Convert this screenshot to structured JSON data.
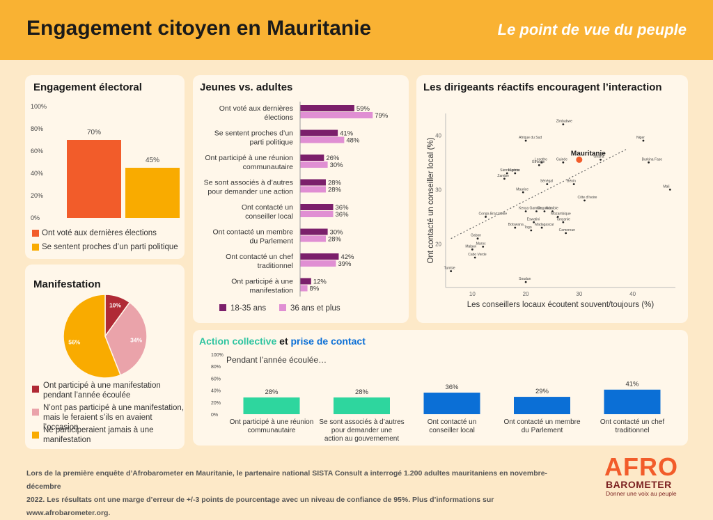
{
  "header": {
    "title": "Engagement citoyen en Mauritanie",
    "subtitle": "Le point de vue du peuple"
  },
  "colors": {
    "orange_red": "#f25c2a",
    "amber": "#f9ab00",
    "purple_dark": "#7b1f6b",
    "purple_light": "#e08fd3",
    "teal": "#2ed69e",
    "blue": "#0b6fd6",
    "dark_red": "#b02a35",
    "pink": "#eaa3aa",
    "header_bg": "#f9b233"
  },
  "electoral": {
    "title": "Engagement électoral",
    "chart_data": {
      "type": "bar",
      "title": "Engagement électoral",
      "categories": [
        "Ont voté aux dernières élections",
        "Se sentent proches d’un parti politique"
      ],
      "values": [
        70,
        45
      ],
      "value_labels": [
        "70%",
        "45%"
      ],
      "ylim": [
        0,
        100
      ],
      "ticks": [
        "0%",
        "20%",
        "40%",
        "60%",
        "80%",
        "100%"
      ],
      "legend": [
        "Ont voté aux dernières élections",
        "Se sentent proches d’un parti politique"
      ]
    }
  },
  "youth": {
    "title": "Jeunes vs. adultes",
    "chart_data": {
      "type": "bar",
      "orientation": "horizontal",
      "categories": [
        [
          "Ont voté aux dernières",
          "élections"
        ],
        [
          "Se sentent proches d’un",
          "parti politique"
        ],
        [
          "Ont participé à une réunion",
          "communautaire"
        ],
        [
          "Se sont associés à d’autres",
          "pour demander une action"
        ],
        [
          "Ont contacté un",
          "conseiller local"
        ],
        [
          "Ont contacté un membre",
          "du Parlement"
        ],
        [
          "Ont contacté un chef",
          "traditionnel"
        ],
        [
          "Ont participé à une",
          "manifestation"
        ]
      ],
      "series": [
        {
          "name": "18-35 ans",
          "values": [
            59,
            41,
            26,
            28,
            36,
            30,
            42,
            12
          ]
        },
        {
          "name": "36 ans et plus",
          "values": [
            79,
            48,
            30,
            28,
            36,
            28,
            39,
            8
          ]
        }
      ],
      "xlim": [
        0,
        100
      ]
    }
  },
  "scatter": {
    "title": "Les dirigeants réactifs encouragent l’interaction",
    "chart_data": {
      "type": "scatter",
      "xlabel": "Les conseillers locaux écoutent souvent/toujours (%)",
      "ylabel": "Ont contacté un conseiller local (%)",
      "xlim": [
        5,
        48
      ],
      "ylim": [
        12,
        44
      ],
      "xticks": [
        10,
        20,
        30,
        40
      ],
      "yticks": [
        20,
        30,
        40
      ],
      "points": [
        {
          "label": "Zimbabwe",
          "x": 27,
          "y": 42
        },
        {
          "label": "Afrique du Sud",
          "x": 20,
          "y": 39
        },
        {
          "label": "Niger",
          "x": 42,
          "y": 39
        },
        {
          "label": "Guinée",
          "x": 27,
          "y": 35
        },
        {
          "label": "Mauritanie",
          "x": 30,
          "y": 35.5,
          "highlight": true
        },
        {
          "label": "Ghana",
          "x": 34,
          "y": 35.5
        },
        {
          "label": "Burkina Faso",
          "x": 43,
          "y": 35
        },
        {
          "label": "Lesotho",
          "x": 23,
          "y": 35
        },
        {
          "label": "Éthiopie",
          "x": 22.5,
          "y": 34.5
        },
        {
          "label": "Sierra Leone",
          "x": 16.5,
          "y": 33
        },
        {
          "label": "Nigéria",
          "x": 18,
          "y": 33
        },
        {
          "label": "Zambie",
          "x": 16,
          "y": 32
        },
        {
          "label": "Sénégal",
          "x": 24,
          "y": 31
        },
        {
          "label": "Bénin",
          "x": 29,
          "y": 31
        },
        {
          "label": "Mali",
          "x": 47,
          "y": 30
        },
        {
          "label": "Maurice",
          "x": 19.5,
          "y": 29.5
        },
        {
          "label": "Côte d'Ivoire",
          "x": 31,
          "y": 28
        },
        {
          "label": "Kenya",
          "x": 20,
          "y": 26
        },
        {
          "label": "Gambie",
          "x": 22,
          "y": 26
        },
        {
          "label": "Namibie",
          "x": 25,
          "y": 26
        },
        {
          "label": "Ouganda",
          "x": 23.5,
          "y": 26
        },
        {
          "label": "Congo-Brazzaville",
          "x": 12.5,
          "y": 25
        },
        {
          "label": "Mozambique",
          "x": 26,
          "y": 25
        },
        {
          "label": "Eswatini",
          "x": 21.5,
          "y": 24
        },
        {
          "label": "Tanzanie",
          "x": 27,
          "y": 24
        },
        {
          "label": "Madagascar",
          "x": 23,
          "y": 23
        },
        {
          "label": "Botswana",
          "x": 18,
          "y": 23
        },
        {
          "label": "Togo",
          "x": 21,
          "y": 22.5
        },
        {
          "label": "Cameroun",
          "x": 27.5,
          "y": 22
        },
        {
          "label": "Gabon",
          "x": 11,
          "y": 21
        },
        {
          "label": "Maroc",
          "x": 12,
          "y": 19.5
        },
        {
          "label": "Malawi",
          "x": 10,
          "y": 19
        },
        {
          "label": "Cabo Verde",
          "x": 10.5,
          "y": 17.5
        },
        {
          "label": "Tunisie",
          "x": 6,
          "y": 15
        },
        {
          "label": "Soudan",
          "x": 20,
          "y": 13
        }
      ]
    }
  },
  "manif": {
    "title": "Manifestation",
    "chart_data": {
      "type": "pie",
      "slices": [
        {
          "label": "Ont participé à une manifestation pendant l’année écoulée",
          "value": 10
        },
        {
          "label": "N’ont pas participé à une manifestation, mais le feraient s’ils en avaient l’occasion",
          "value": 34
        },
        {
          "label": "Ne participeraient jamais à une manifestation",
          "value": 56
        }
      ],
      "value_labels": [
        "10%",
        "34%",
        "56%"
      ]
    },
    "legend": [
      [
        "Ont participé à une manifestation",
        "pendant l’année écoulée"
      ],
      [
        "N’ont pas participé à une manifestation,",
        "mais le feraient s’ils en avaient l’occasion"
      ],
      [
        "Ne participeraient jamais à une",
        "manifestation"
      ]
    ]
  },
  "action": {
    "title_part1": "Action collective",
    "title_and": "et",
    "title_part2": "prise de contact",
    "subtitle": "Pendant l’année écoulée…",
    "chart_data": {
      "type": "bar",
      "categories": [
        [
          "Ont participé à une réunion",
          "communautaire"
        ],
        [
          "Se sont associés à d’autres",
          "pour demander une",
          "action au gouvernement"
        ],
        [
          "Ont contacté un",
          "conseiller local"
        ],
        [
          "Ont contacté un membre",
          "du Parlement"
        ],
        [
          "Ont contacté un chef",
          "traditionnel"
        ]
      ],
      "values": [
        28,
        28,
        36,
        29,
        41
      ],
      "value_labels": [
        "28%",
        "28%",
        "36%",
        "29%",
        "41%"
      ],
      "ylim": [
        0,
        100
      ],
      "ticks": [
        "0%",
        "20%",
        "40%",
        "60%",
        "80%",
        "100%"
      ]
    }
  },
  "footer": {
    "line1": "Lors de la première enquête d’Afrobarometer en Mauritanie, le partenaire national SISTA Consult a interrogé 1.200 adultes mauritaniens en novembre-décembre",
    "line2": "2022. Les résultats ont une marge d’erreur de +/-3 points de pourcentage avec un niveau de confiance de 95%. Plus d’informations sur www.afrobarometer.org."
  },
  "logo": {
    "afro": "AFR",
    "o": "O",
    "barometer": "BAROMETER",
    "tagline": "Donner une voix au peuple"
  }
}
